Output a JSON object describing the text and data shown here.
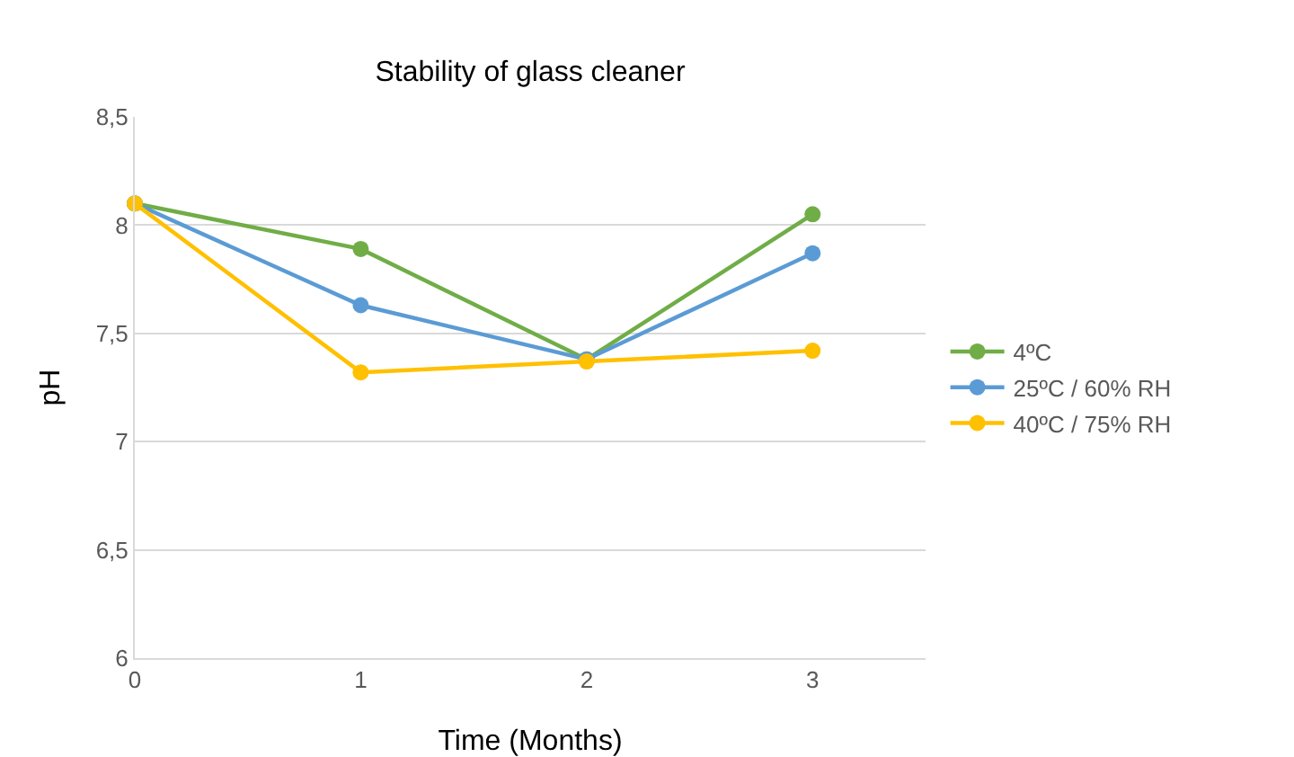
{
  "chart_data": {
    "type": "line",
    "title": "Stability of glass cleaner",
    "xlabel": "Time (Months)",
    "ylabel": "pH",
    "x": [
      0,
      1,
      2,
      3
    ],
    "series": [
      {
        "name": "4ºC",
        "color": "#70ad47",
        "values": [
          8.1,
          7.89,
          7.38,
          8.05
        ]
      },
      {
        "name": "25ºC / 60% RH",
        "color": "#5b9bd5",
        "values": [
          8.1,
          7.63,
          7.38,
          7.87
        ]
      },
      {
        "name": "40ºC / 75% RH",
        "color": "#ffc000",
        "values": [
          8.1,
          7.32,
          7.37,
          7.42
        ]
      }
    ],
    "xlim": [
      0,
      3.5
    ],
    "xticks": [
      0,
      1,
      2,
      3
    ],
    "ylim": [
      6,
      8.5
    ],
    "yticks": [
      6,
      {
        "value": 6.5,
        "label": "6,5"
      },
      7,
      {
        "value": 7.5,
        "label": "7,5"
      },
      8,
      {
        "value": 8.5,
        "label": "8,5"
      }
    ],
    "grid": "y",
    "legend": "right",
    "marker": "circle",
    "line_style": "solid"
  }
}
